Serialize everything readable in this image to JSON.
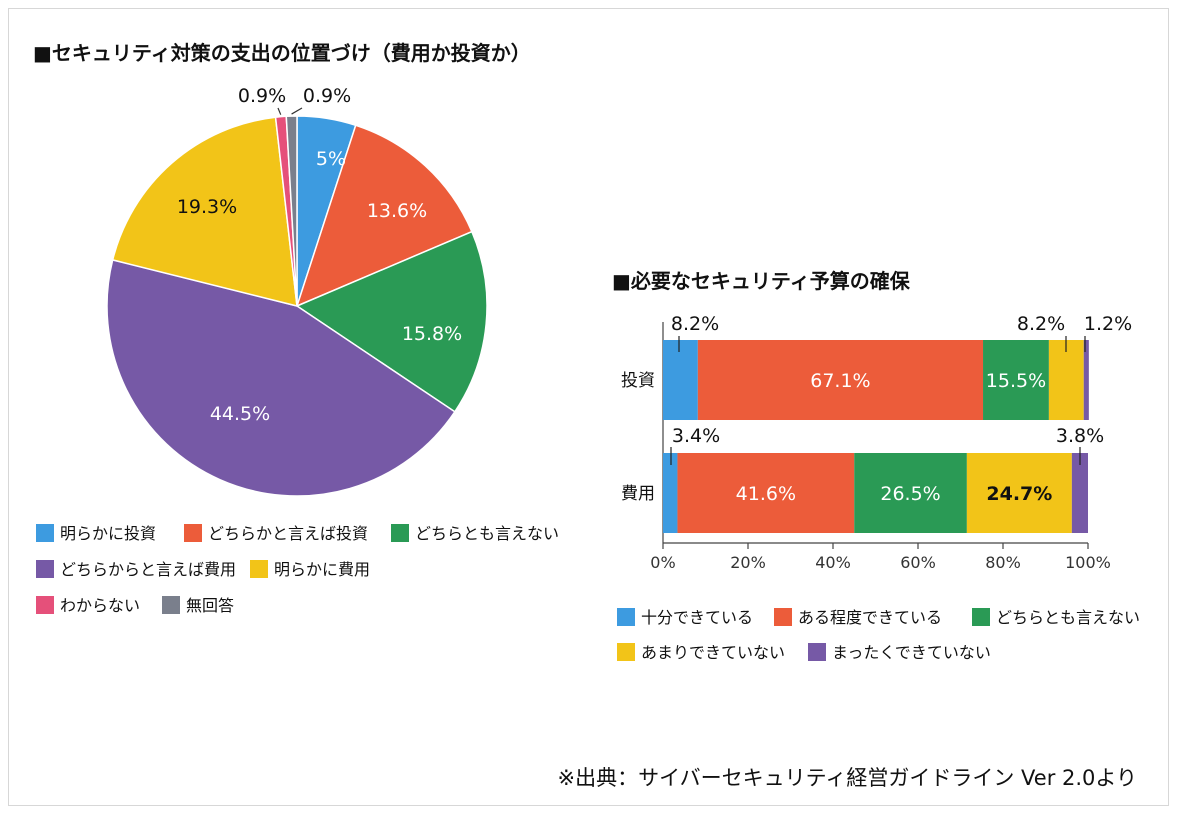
{
  "chart_data": [
    {
      "type": "pie",
      "title": "■セキュリティ対策の支出の位置づけ（費用か投資か）",
      "series": [
        {
          "name": "明らかに投資",
          "value": 5,
          "label": "5%",
          "color": "#3d9be0"
        },
        {
          "name": "どちらかと言えば投資",
          "value": 13.6,
          "label": "13.6%",
          "color": "#ec5c3a"
        },
        {
          "name": "どちらとも言えない",
          "value": 15.8,
          "label": "15.8%",
          "color": "#2a9a55"
        },
        {
          "name": "どちらからと言えば費用",
          "value": 44.5,
          "label": "44.5%",
          "color": "#7659a6"
        },
        {
          "name": "明らかに費用",
          "value": 19.3,
          "label": "19.3%",
          "color": "#f2c418"
        },
        {
          "name": "わからない",
          "value": 0.9,
          "label": "0.9%",
          "color": "#e5507a"
        },
        {
          "name": "無回答",
          "value": 0.9,
          "label": "0.9%",
          "color": "#7a7f8c"
        }
      ]
    },
    {
      "type": "bar",
      "orientation": "horizontal-stacked",
      "title": "■必要なセキュリティ予算の確保",
      "categories": [
        "投資",
        "費用"
      ],
      "series": [
        {
          "name": "十分できている",
          "color": "#3d9be0",
          "values": [
            8.2,
            3.4
          ],
          "labels": [
            "8.2%",
            "3.4%"
          ]
        },
        {
          "name": "ある程度できている",
          "color": "#ec5c3a",
          "values": [
            67.1,
            41.6
          ],
          "labels": [
            "67.1%",
            "41.6%"
          ]
        },
        {
          "name": "どちらとも言えない",
          "color": "#2a9a55",
          "values": [
            15.5,
            26.5
          ],
          "labels": [
            "15.5%",
            "26.5%"
          ]
        },
        {
          "name": "あまりできていない",
          "color": "#f2c418",
          "values": [
            8.2,
            24.7
          ],
          "labels": [
            "8.2%",
            "24.7%"
          ]
        },
        {
          "name": "まったくできていない",
          "color": "#7659a6",
          "values": [
            1.2,
            3.8
          ],
          "labels": [
            "1.2%",
            "3.8%"
          ]
        }
      ],
      "xlim": [
        0,
        100
      ],
      "xticks": [
        "0%",
        "20%",
        "40%",
        "60%",
        "80%",
        "100%"
      ]
    }
  ],
  "source_note": "※出典：サイバーセキュリティ経営ガイドライン Ver 2.0より"
}
